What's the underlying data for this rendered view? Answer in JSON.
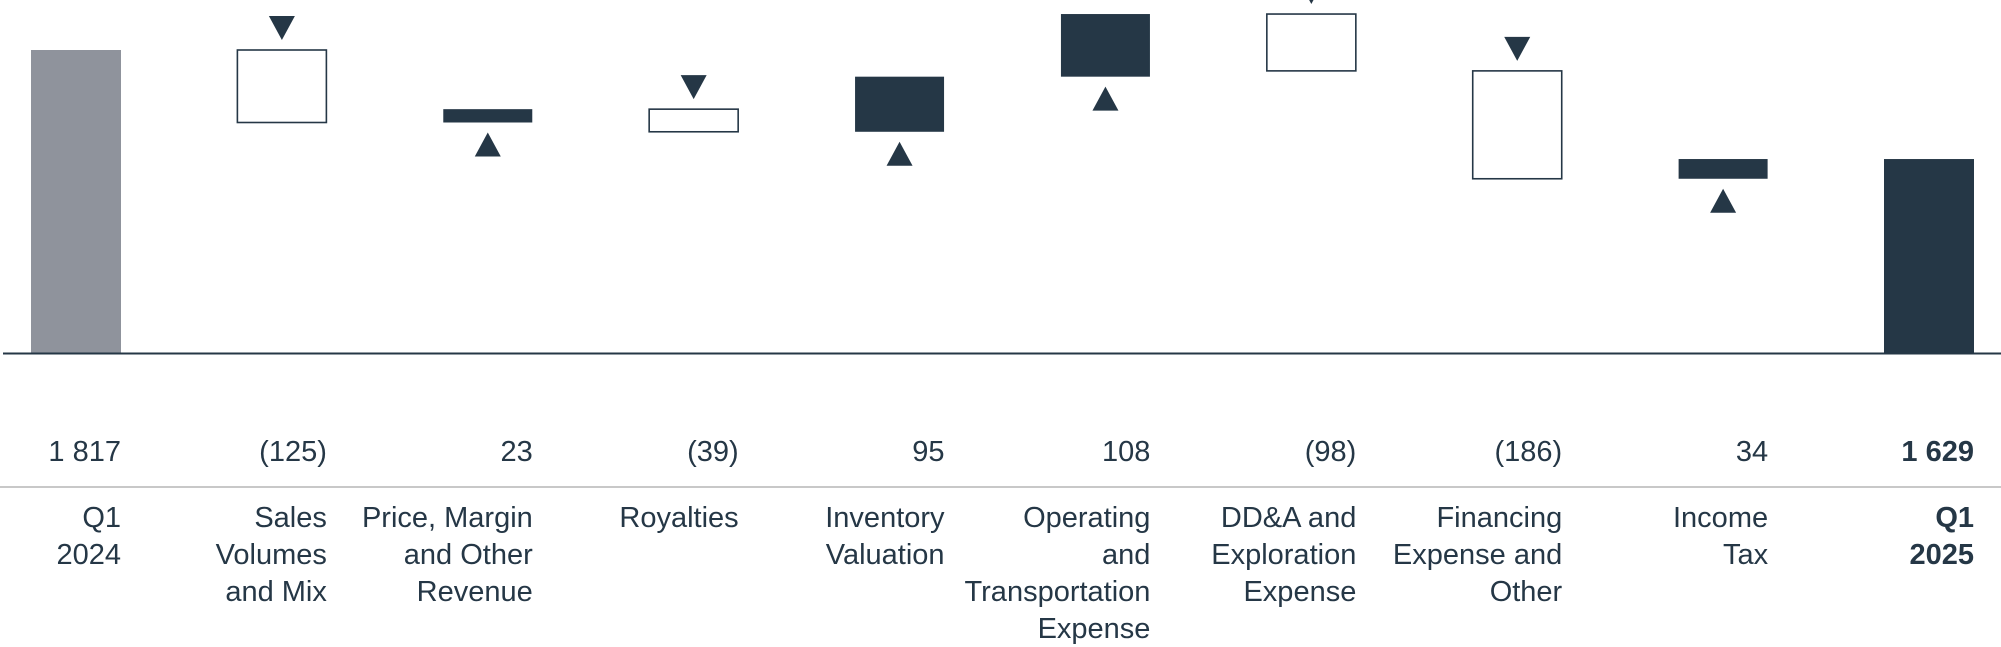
{
  "chart_data": {
    "type": "bar",
    "subtype": "waterfall",
    "categories": [
      [
        "Q1",
        "2024"
      ],
      [
        "Sales",
        "Volumes",
        "and Mix"
      ],
      [
        "Price, Margin",
        "and Other",
        "Revenue"
      ],
      [
        "Royalties"
      ],
      [
        "Inventory",
        "Valuation"
      ],
      [
        "Operating",
        "and",
        "Transportation",
        "Expense"
      ],
      [
        "DD&A and",
        "Exploration",
        "Expense"
      ],
      [
        "Financing",
        "Expense and",
        "Other"
      ],
      [
        "Income",
        "Tax"
      ],
      [
        "Q1",
        "2025"
      ]
    ],
    "values": [
      1817,
      -125,
      23,
      -39,
      95,
      108,
      -98,
      -186,
      34,
      1629
    ],
    "value_labels": [
      "1 817",
      "(125)",
      "23",
      "(39)",
      "95",
      "108",
      "(98)",
      "(186)",
      "34",
      "1 629"
    ],
    "bar_kinds": [
      "total",
      "delta",
      "delta",
      "delta",
      "delta",
      "delta",
      "delta",
      "delta",
      "delta",
      "total"
    ],
    "bold": [
      false,
      false,
      false,
      false,
      false,
      false,
      false,
      false,
      false,
      true
    ],
    "title": "",
    "xlabel": "",
    "ylabel": "",
    "grid": false,
    "legend": "none"
  },
  "colors": {
    "start_total": "#8f939c",
    "end_total": "#253746",
    "increase": "#253746",
    "decrease_fill": "#ffffff",
    "decrease_outline": "#253746",
    "text": "#253746",
    "separator": "#c8c8c8"
  },
  "icons": {
    "increase": "triangle-up-icon",
    "decrease": "triangle-down-icon"
  }
}
